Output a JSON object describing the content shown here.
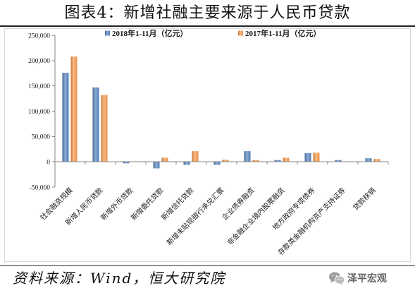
{
  "chart_data": {
    "type": "bar",
    "title": "图表4：新增社融主要来源于人民币贷款",
    "categories": [
      "社会融资规模",
      "新增人民币贷款",
      "新增外币贷款",
      "新增委托贷款",
      "新增信托贷款",
      "新增未贴现银行承兑汇票",
      "企业债券融资",
      "非金融企业境内股票融资",
      "地方政府专项债券",
      "存款类金融机构资产支持证券",
      "贷款核销"
    ],
    "series": [
      {
        "name": "2018年1-11月（亿元）",
        "color": "#4F81BD",
        "values": [
          176000,
          147000,
          -3000,
          -13000,
          -6000,
          -6000,
          21000,
          3500,
          17000,
          3500,
          7000
        ]
      },
      {
        "name": "2017年1-11月（亿元）",
        "color": "#F79646",
        "values": [
          208000,
          132000,
          0,
          8000,
          21000,
          4000,
          3500,
          8000,
          18000,
          1000,
          5500
        ]
      }
    ],
    "ylim": [
      -50000,
      250000
    ],
    "yticks": [
      250000,
      200000,
      150000,
      100000,
      50000,
      0,
      -50000
    ],
    "ytick_labels": [
      "250,000",
      "200,000",
      "150,000",
      "100,000",
      "50,000",
      "0",
      "-50,000"
    ],
    "grid": false,
    "legend": "top-center"
  },
  "source": "资料来源：Wind，恒大研究院",
  "watermark": {
    "icon": "wechat-icon",
    "text": "泽平宏观"
  }
}
